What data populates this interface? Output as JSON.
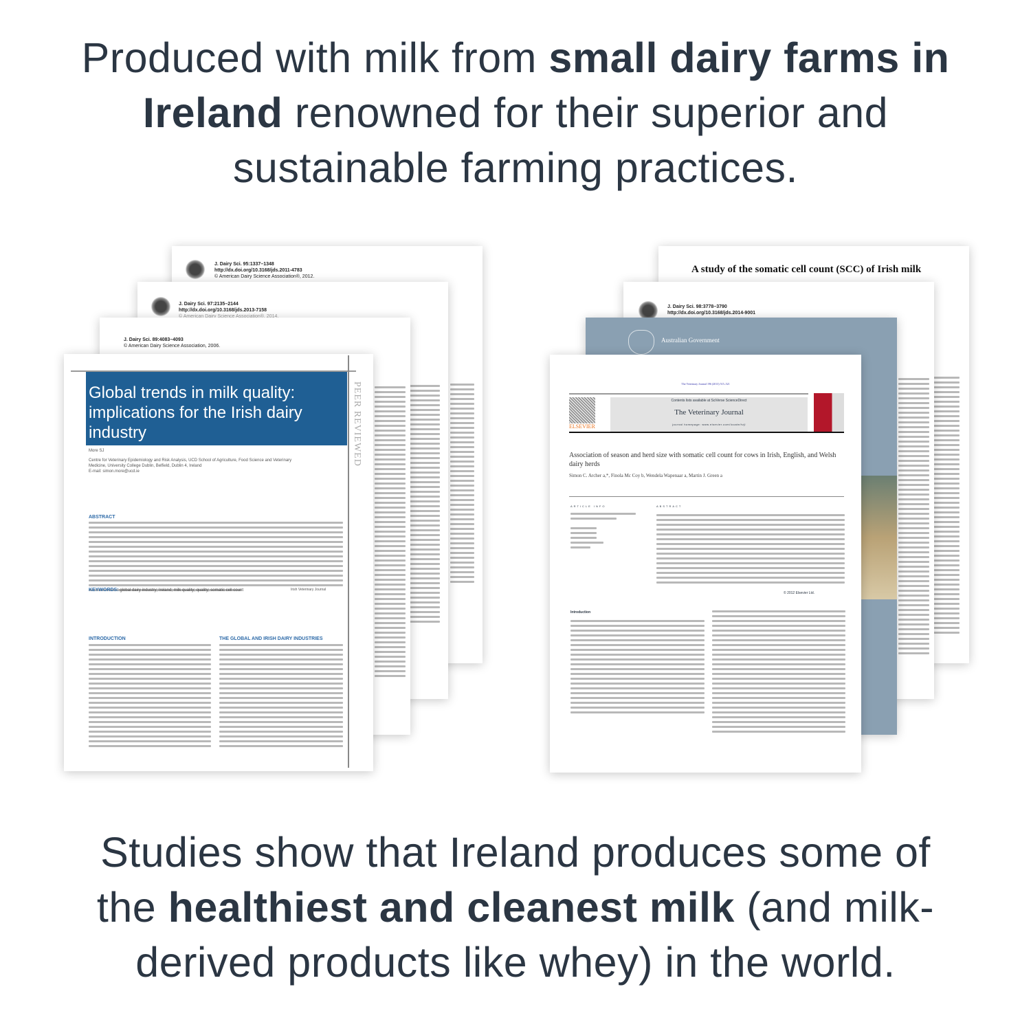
{
  "headline_top": {
    "part1": "Produced with milk from ",
    "bold1": "small dairy farms in Ireland",
    "part2": " renowned for their superior and sustainable farming practices."
  },
  "headline_bottom": {
    "part1": "Studies show that Ireland produces some of the ",
    "bold1": "healthiest and cleanest milk",
    "part2": " (and milk-derived products like whey) in the world."
  },
  "left_papers": {
    "paper_back": {
      "journal": "J. Dairy Sci. 95:1337–1348",
      "doi": "http://dx.doi.org/10.3168/jds.2011-4783",
      "copyright": "© American Dairy Science Association®, 2012."
    },
    "paper_2": {
      "journal": "J. Dairy Sci. 97:2135–2144",
      "doi": "http://dx.doi.org/10.3168/jds.2013-7158",
      "copyright": "© American Dairy Science Association®, 2014."
    },
    "paper_3": {
      "journal": "J. Dairy Sci. 89:4083–4093",
      "copyright": "© American Dairy Science Association, 2006."
    },
    "front": {
      "title": "Global trends in milk quality: implications for the Irish dairy industry",
      "side_label": "PEER REVIEWED",
      "author": "More SJ",
      "affiliation": "Centre for Veterinary Epidemiology and Risk Analysis, UCD School of Agriculture, Food Science and Veterinary Medicine, University College Dublin, Belfield, Dublin 4, Ireland",
      "email": "E-mail: simon.more@ucd.ie",
      "abstract_heading": "ABSTRACT",
      "keywords_heading": "KEYWORDS:",
      "keywords": "global dairy industry; Ireland; milk quality; quality; somatic cell count",
      "journal_tag": "Irish Veterinary Journal",
      "intro_heading": "INTRODUCTION",
      "section_heading": "THE GLOBAL AND IRISH DAIRY INDUSTRIES"
    }
  },
  "right_papers": {
    "paper_back": {
      "title": "A study of the somatic cell count (SCC) of Irish milk"
    },
    "paper_2": {
      "journal": "J. Dairy Sci. 98:3778–3790",
      "doi": "http://dx.doi.org/10.3168/jds.2014-9001"
    },
    "gov": {
      "label": "Australian Government",
      "color": "#8aa0b2"
    },
    "front": {
      "citation": "The Veterinary Journal 196 (2013) 515–521",
      "contents": "Contents lists available at SciVerse ScienceDirect",
      "journal": "The Veterinary Journal",
      "homepage": "journal homepage: www.elsevier.com/locate/tvjl",
      "publisher": "ELSEVIER",
      "title": "Association of season and herd size with somatic cell count for cows in Irish, English, and Welsh dairy herds",
      "authors": "Simon C. Archer a,*, Finola Mc Coy b, Wendela Wapenaar a, Martin J. Green a",
      "article_info": "ARTICLE INFO",
      "abstract": "ABSTRACT",
      "copyright": "© 2012 Elsevier Ltd.",
      "intro": "Introduction"
    }
  },
  "colors": {
    "text": "#2b3643",
    "title_blue": "#1f5f94",
    "elsevier_orange": "#e9711c",
    "vet_red": "#b3172a"
  }
}
